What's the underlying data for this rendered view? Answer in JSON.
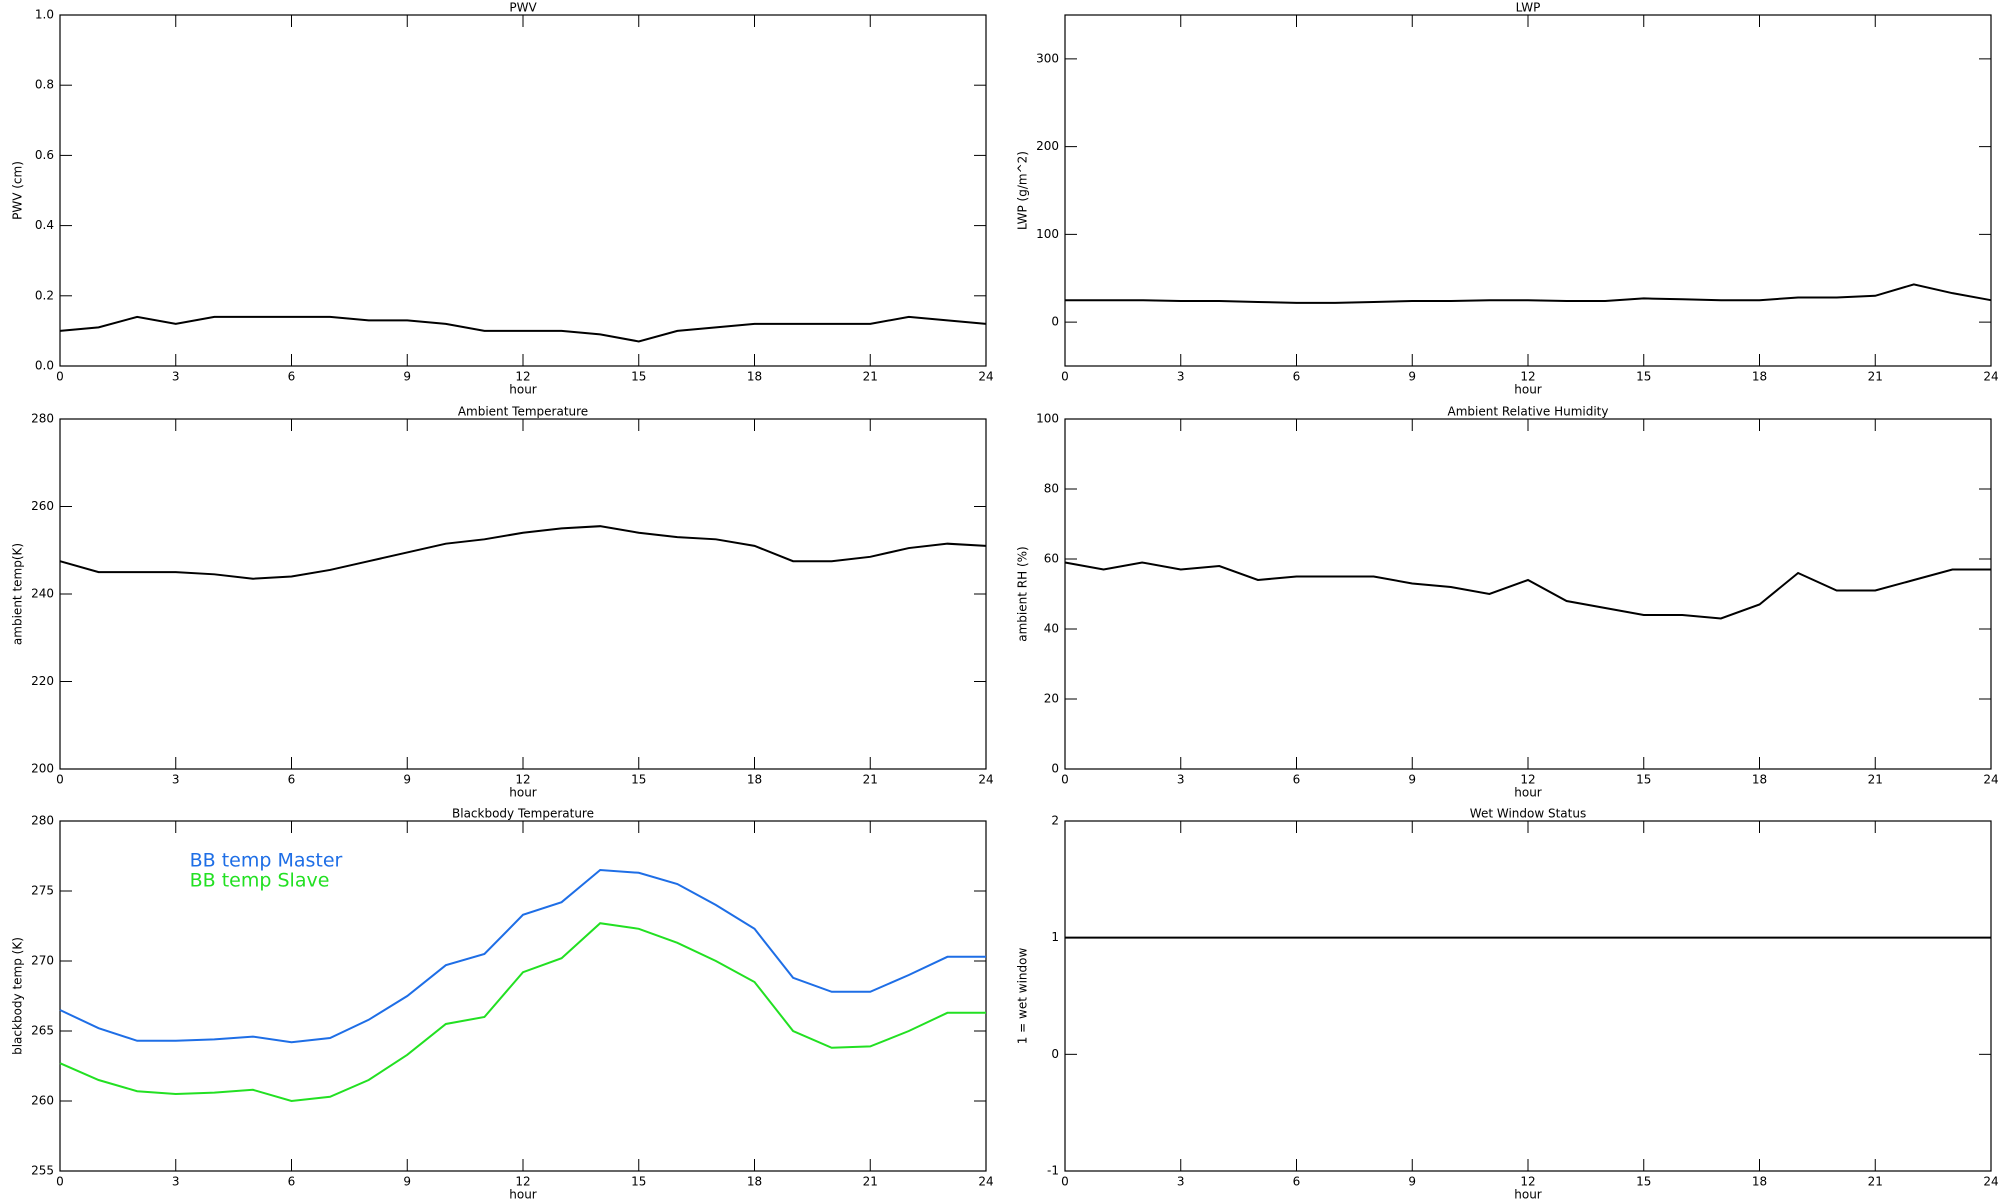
{
  "chart_data": [
    {
      "type": "line",
      "title": "PWV",
      "ylabel": "PWV (cm)",
      "xlabel": "hour",
      "x": [
        0,
        1,
        2,
        3,
        4,
        5,
        6,
        7,
        8,
        9,
        10,
        11,
        12,
        13,
        14,
        15,
        16,
        17,
        18,
        19,
        20,
        21,
        22,
        23,
        24
      ],
      "series": [
        {
          "color": "#000000",
          "values": [
            0.1,
            0.11,
            0.14,
            0.12,
            0.14,
            0.14,
            0.14,
            0.14,
            0.13,
            0.13,
            0.12,
            0.1,
            0.1,
            0.1,
            0.09,
            0.07,
            0.1,
            0.11,
            0.12,
            0.12,
            0.12,
            0.12,
            0.14,
            0.13,
            0.12
          ]
        }
      ],
      "xlim": [
        0,
        24
      ],
      "xticks": [
        0,
        3,
        6,
        9,
        12,
        15,
        18,
        21,
        24
      ],
      "ylim": [
        0,
        1
      ],
      "yticks": [
        {
          "value": 0,
          "label": "0.0"
        },
        0.2,
        0.4,
        0.6,
        0.8,
        {
          "value": 1,
          "label": "1.0"
        }
      ]
    },
    {
      "type": "line",
      "title": "LWP",
      "ylabel": "LWP (g/m^2)",
      "xlabel": "hour",
      "x": [
        0,
        1,
        2,
        3,
        4,
        5,
        6,
        7,
        8,
        9,
        10,
        11,
        12,
        13,
        14,
        15,
        16,
        17,
        18,
        19,
        20,
        21,
        22,
        23,
        24
      ],
      "series": [
        {
          "color": "#000000",
          "values": [
            25,
            25,
            25,
            24,
            24,
            23,
            22,
            22,
            23,
            24,
            24,
            25,
            25,
            24,
            24,
            27,
            26,
            25,
            25,
            28,
            28,
            30,
            43,
            33,
            25
          ]
        }
      ],
      "xlim": [
        0,
        24
      ],
      "xticks": [
        0,
        3,
        6,
        9,
        12,
        15,
        18,
        21,
        24
      ],
      "ylim": [
        -50,
        350
      ],
      "yticks": [
        0,
        100,
        200,
        300
      ]
    },
    {
      "type": "line",
      "title": "Ambient Temperature",
      "ylabel": "ambient temp(K)",
      "xlabel": "hour",
      "x": [
        0,
        1,
        2,
        3,
        4,
        5,
        6,
        7,
        8,
        9,
        10,
        11,
        12,
        13,
        14,
        15,
        16,
        17,
        18,
        19,
        20,
        21,
        22,
        23,
        24
      ],
      "series": [
        {
          "color": "#000000",
          "values": [
            247.5,
            245,
            245,
            245,
            244.5,
            243.5,
            244,
            245.5,
            247.5,
            249.5,
            251.5,
            252.5,
            254,
            255,
            255.5,
            254,
            253,
            252.5,
            251,
            247.5,
            247.5,
            248.5,
            250.5,
            251.5,
            251
          ]
        }
      ],
      "xlim": [
        0,
        24
      ],
      "xticks": [
        0,
        3,
        6,
        9,
        12,
        15,
        18,
        21,
        24
      ],
      "ylim": [
        200,
        280
      ],
      "yticks": [
        200,
        220,
        240,
        260,
        280
      ]
    },
    {
      "type": "line",
      "title": "Ambient Relative Humidity",
      "ylabel": "ambient RH (%)",
      "xlabel": "hour",
      "x": [
        0,
        1,
        2,
        3,
        4,
        5,
        6,
        7,
        8,
        9,
        10,
        11,
        12,
        13,
        14,
        15,
        16,
        17,
        18,
        19,
        20,
        21,
        22,
        23,
        24
      ],
      "series": [
        {
          "color": "#000000",
          "values": [
            59,
            57,
            59,
            57,
            58,
            54,
            55,
            55,
            55,
            53,
            52,
            50,
            54,
            48,
            46,
            44,
            44,
            43,
            47,
            56,
            51,
            51,
            54,
            57,
            57
          ]
        }
      ],
      "xlim": [
        0,
        24
      ],
      "xticks": [
        0,
        3,
        6,
        9,
        12,
        15,
        18,
        21,
        24
      ],
      "ylim": [
        0,
        100
      ],
      "yticks": [
        0,
        20,
        40,
        60,
        80,
        100
      ]
    },
    {
      "type": "line",
      "title": "Blackbody Temperature",
      "ylabel": "blackbody temp (K)",
      "xlabel": "hour",
      "x": [
        0,
        1,
        2,
        3,
        4,
        5,
        6,
        7,
        8,
        9,
        10,
        11,
        12,
        13,
        14,
        15,
        16,
        17,
        18,
        19,
        20,
        21,
        22,
        23,
        24
      ],
      "series": [
        {
          "name": "BB temp Master",
          "color": "#1e6ee6",
          "values": [
            266.5,
            265.2,
            264.3,
            264.3,
            264.4,
            264.6,
            264.2,
            264.5,
            265.8,
            267.5,
            269.7,
            270.5,
            273.3,
            274.2,
            276.5,
            276.3,
            275.5,
            274,
            272.3,
            268.8,
            267.8,
            267.8,
            269,
            270.3,
            270.3
          ]
        },
        {
          "name": "BB temp Slave",
          "color": "#22e022",
          "values": [
            262.7,
            261.5,
            260.7,
            260.5,
            260.6,
            260.8,
            260,
            260.3,
            261.5,
            263.3,
            265.5,
            266,
            269.2,
            270.2,
            272.7,
            272.3,
            271.3,
            270,
            268.5,
            265,
            263.8,
            263.9,
            265,
            266.3,
            266.3
          ]
        }
      ],
      "legend": "upper left",
      "xlim": [
        0,
        24
      ],
      "xticks": [
        0,
        3,
        6,
        9,
        12,
        15,
        18,
        21,
        24
      ],
      "ylim": [
        255,
        280
      ],
      "yticks": [
        255,
        260,
        265,
        270,
        275,
        280
      ]
    },
    {
      "type": "line",
      "title": "Wet Window Status",
      "ylabel": "1 = wet window",
      "xlabel": "hour",
      "x": [
        0,
        24
      ],
      "series": [
        {
          "color": "#000000",
          "values": [
            1,
            1
          ]
        }
      ],
      "xlim": [
        0,
        24
      ],
      "xticks": [
        0,
        3,
        6,
        9,
        12,
        15,
        18,
        21,
        24
      ],
      "ylim": [
        -1,
        2
      ],
      "yticks": [
        -1,
        0,
        1,
        2
      ]
    }
  ]
}
